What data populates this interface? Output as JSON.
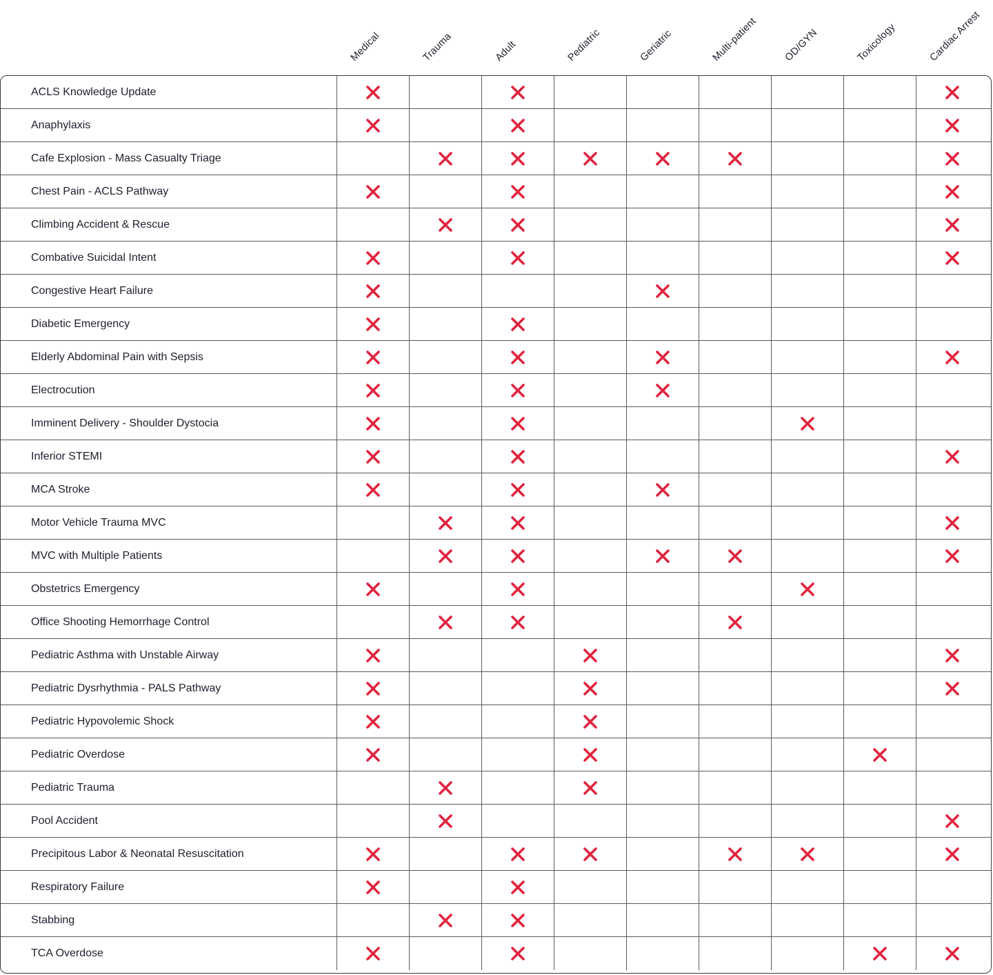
{
  "columns": [
    "Medical",
    "Trauma",
    "Adult",
    "Pediatric",
    "Geriatric",
    "Multi-patient",
    "OD/GYN",
    "Toxicology",
    "Cardiac Arrest"
  ],
  "mark_icon": "x-mark-icon",
  "mark_color": "#e0243e",
  "rows": [
    {
      "label": "ACLS Knowledge Update",
      "marks": [
        1,
        0,
        1,
        0,
        0,
        0,
        0,
        0,
        1
      ]
    },
    {
      "label": "Anaphylaxis",
      "marks": [
        1,
        0,
        1,
        0,
        0,
        0,
        0,
        0,
        1
      ]
    },
    {
      "label": "Cafe Explosion - Mass Casualty Triage",
      "marks": [
        0,
        1,
        1,
        1,
        1,
        1,
        0,
        0,
        1
      ]
    },
    {
      "label": "Chest Pain - ACLS Pathway",
      "marks": [
        1,
        0,
        1,
        0,
        0,
        0,
        0,
        0,
        1
      ]
    },
    {
      "label": "Climbing Accident & Rescue",
      "marks": [
        0,
        1,
        1,
        0,
        0,
        0,
        0,
        0,
        1
      ]
    },
    {
      "label": "Combative Suicidal Intent",
      "marks": [
        1,
        0,
        1,
        0,
        0,
        0,
        0,
        0,
        1
      ]
    },
    {
      "label": "Congestive Heart Failure",
      "marks": [
        1,
        0,
        0,
        0,
        1,
        0,
        0,
        0,
        0
      ]
    },
    {
      "label": "Diabetic Emergency",
      "marks": [
        1,
        0,
        1,
        0,
        0,
        0,
        0,
        0,
        0
      ]
    },
    {
      "label": "Elderly Abdominal Pain with Sepsis",
      "marks": [
        1,
        0,
        1,
        0,
        1,
        0,
        0,
        0,
        1
      ]
    },
    {
      "label": "Electrocution",
      "marks": [
        1,
        0,
        1,
        0,
        1,
        0,
        0,
        0,
        0
      ]
    },
    {
      "label": "Imminent Delivery - Shoulder Dystocia",
      "marks": [
        1,
        0,
        1,
        0,
        0,
        0,
        1,
        0,
        0
      ]
    },
    {
      "label": "Inferior STEMI",
      "marks": [
        1,
        0,
        1,
        0,
        0,
        0,
        0,
        0,
        1
      ]
    },
    {
      "label": "MCA Stroke",
      "marks": [
        1,
        0,
        1,
        0,
        1,
        0,
        0,
        0,
        0
      ]
    },
    {
      "label": "Motor Vehicle Trauma MVC",
      "marks": [
        0,
        1,
        1,
        0,
        0,
        0,
        0,
        0,
        1
      ]
    },
    {
      "label": "MVC with Multiple Patients",
      "marks": [
        0,
        1,
        1,
        0,
        1,
        1,
        0,
        0,
        1
      ]
    },
    {
      "label": "Obstetrics Emergency",
      "marks": [
        1,
        0,
        1,
        0,
        0,
        0,
        1,
        0,
        0
      ]
    },
    {
      "label": "Office Shooting Hemorrhage Control",
      "marks": [
        0,
        1,
        1,
        0,
        0,
        1,
        0,
        0,
        0
      ]
    },
    {
      "label": "Pediatric Asthma with Unstable Airway",
      "marks": [
        1,
        0,
        0,
        1,
        0,
        0,
        0,
        0,
        1
      ]
    },
    {
      "label": "Pediatric Dysrhythmia - PALS Pathway",
      "marks": [
        1,
        0,
        0,
        1,
        0,
        0,
        0,
        0,
        1
      ]
    },
    {
      "label": "Pediatric Hypovolemic Shock",
      "marks": [
        1,
        0,
        0,
        1,
        0,
        0,
        0,
        0,
        0
      ]
    },
    {
      "label": "Pediatric Overdose",
      "marks": [
        1,
        0,
        0,
        1,
        0,
        0,
        0,
        1,
        0
      ]
    },
    {
      "label": "Pediatric Trauma",
      "marks": [
        0,
        1,
        0,
        1,
        0,
        0,
        0,
        0,
        0
      ]
    },
    {
      "label": "Pool Accident",
      "marks": [
        0,
        1,
        0,
        0,
        0,
        0,
        0,
        0,
        1
      ]
    },
    {
      "label": "Precipitous Labor & Neonatal Resuscitation",
      "marks": [
        1,
        0,
        1,
        1,
        0,
        1,
        1,
        0,
        1
      ]
    },
    {
      "label": "Respiratory Failure",
      "marks": [
        1,
        0,
        1,
        0,
        0,
        0,
        0,
        0,
        0
      ]
    },
    {
      "label": "Stabbing",
      "marks": [
        0,
        1,
        1,
        0,
        0,
        0,
        0,
        0,
        0
      ]
    },
    {
      "label": "TCA Overdose",
      "marks": [
        1,
        0,
        1,
        0,
        0,
        0,
        0,
        1,
        1
      ]
    }
  ]
}
